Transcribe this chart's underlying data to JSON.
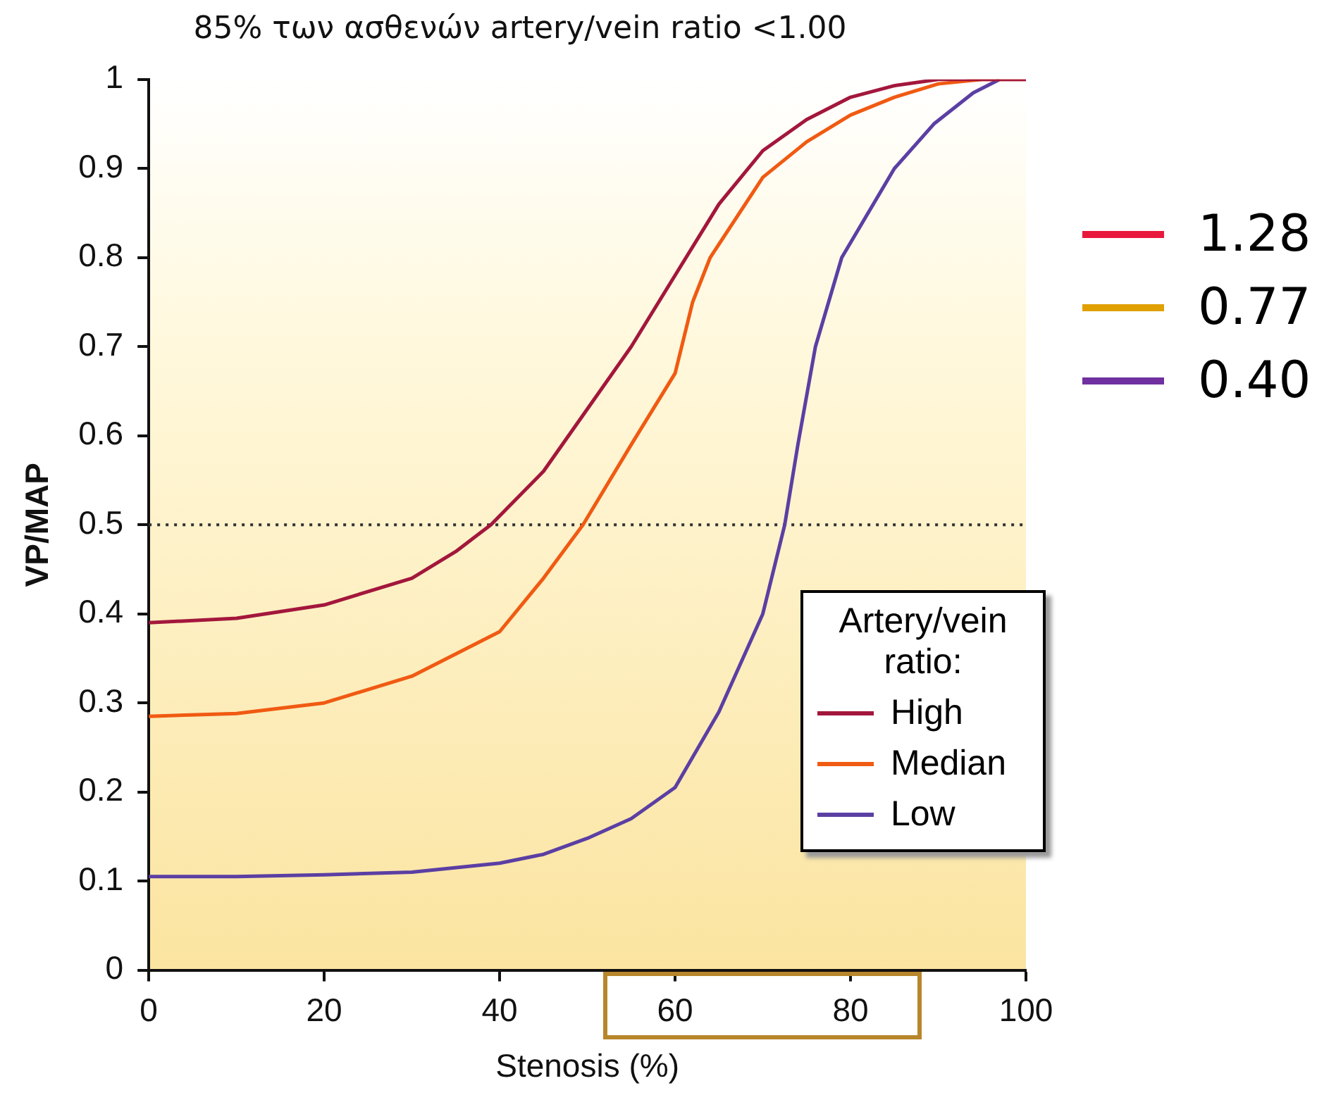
{
  "chart_data": {
    "type": "line",
    "title": "85% των ασθενών artery/vein ratio <1.00",
    "xlabel": "Stenosis (%)",
    "ylabel": "VP/MAP",
    "legend_title": "Artery/vein ratio:",
    "series": [
      {
        "name": "High",
        "color": "#a3173c",
        "x": [
          0,
          10,
          20,
          30,
          35,
          39,
          45,
          50,
          55,
          60,
          65,
          70,
          75,
          80,
          85,
          90,
          100
        ],
        "values": [
          0.39,
          0.395,
          0.41,
          0.44,
          0.47,
          0.5,
          0.56,
          0.63,
          0.7,
          0.78,
          0.86,
          0.92,
          0.955,
          0.98,
          0.993,
          1,
          1
        ]
      },
      {
        "name": "Median",
        "color": "#f05a12",
        "x": [
          0,
          10,
          20,
          30,
          40,
          45,
          49.5,
          55,
          60,
          61,
          62,
          64,
          70,
          75,
          80,
          85,
          90,
          95,
          100
        ],
        "values": [
          0.285,
          0.288,
          0.3,
          0.33,
          0.38,
          0.44,
          0.5,
          0.59,
          0.67,
          0.71,
          0.75,
          0.8,
          0.89,
          0.93,
          0.96,
          0.98,
          0.995,
          1,
          1
        ]
      },
      {
        "name": "Low",
        "color": "#5b3fa3",
        "x": [
          0,
          10,
          20,
          30,
          40,
          45,
          50,
          55,
          60,
          65,
          70,
          72.5,
          74,
          76,
          79,
          85,
          89.5,
          94,
          97
        ],
        "values": [
          0.105,
          0.105,
          0.107,
          0.11,
          0.12,
          0.13,
          0.148,
          0.17,
          0.205,
          0.29,
          0.4,
          0.5,
          0.59,
          0.7,
          0.8,
          0.9,
          0.95,
          0.985,
          1
        ]
      }
    ],
    "xlim": [
      0,
      100
    ],
    "xticks": [
      0,
      20,
      40,
      60,
      80,
      100
    ],
    "ylim": [
      0,
      1
    ],
    "yticks": [
      0,
      0.1,
      0.2,
      0.3,
      0.4,
      0.5,
      0.6,
      0.7,
      0.8,
      0.9,
      1
    ],
    "ref_lines": [
      {
        "axis": "y",
        "value": 0.5,
        "color": "#333333",
        "line_style": "dotted"
      }
    ],
    "annotations": [
      "1.28",
      "0.77",
      "0.40"
    ],
    "legend": "bottom right",
    "grid": false,
    "marker": "none",
    "line_style": "solid"
  }
}
